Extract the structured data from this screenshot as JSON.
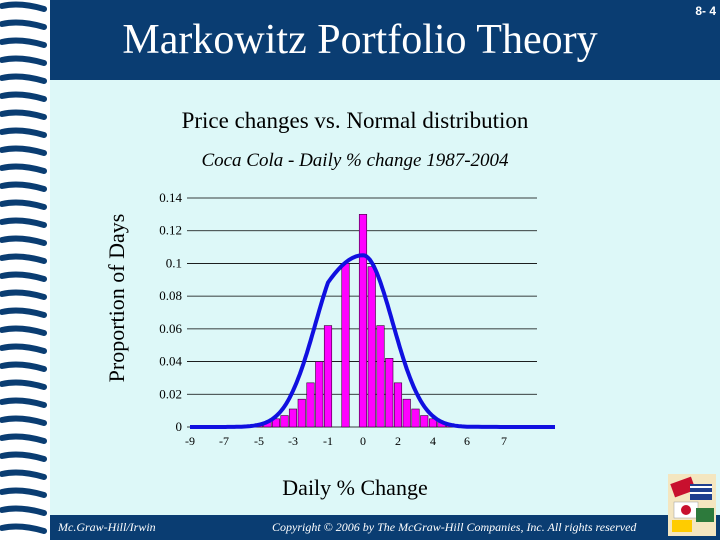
{
  "slide": {
    "title": "Markowitz Portfolio Theory",
    "number": "8- 4",
    "heading": "Price changes vs. Normal distribution",
    "footer_left": "Mc.Graw-Hill/Irwin",
    "footer_right": "Copyright © 2006 by The McGraw-Hill Companies, Inc. All rights reserved",
    "colors": {
      "band": "#0a3d72",
      "content_bg": "#ddf8f8",
      "bars": "#ff00ff",
      "curve": "#1010e0"
    }
  },
  "chart_data": {
    "type": "bar",
    "subtitle": "Coca Cola - Daily % change 1987-2004",
    "xlabel": "Daily % Change",
    "ylabel": "Proportion of Days",
    "ylim": [
      0,
      0.14
    ],
    "xlim": [
      -9,
      10
    ],
    "yticks": [
      "0",
      "0.02",
      "0.04",
      "0.06",
      "0.08",
      "0.1",
      "0.12",
      "0.14"
    ],
    "xticks": [
      "-9",
      "-7",
      "-5",
      "-3",
      "-1",
      "0",
      "2",
      "4",
      "6",
      "7"
    ],
    "grid": "horizontal",
    "series": [
      {
        "kind": "histogram",
        "bin_width": 0.5,
        "x": [
          -6.5,
          -6,
          -5.5,
          -5,
          -4.5,
          -4,
          -3.5,
          -3,
          -2.5,
          -2,
          -1.5,
          -1,
          -0.5,
          0,
          0.5,
          1,
          1.5,
          2,
          2.5,
          3,
          3.5,
          4,
          4.5,
          5,
          5.5,
          6,
          6.5
        ],
        "values": [
          0.0005,
          0.0005,
          0.001,
          0.002,
          0.003,
          0.005,
          0.007,
          0.011,
          0.017,
          0.027,
          0.04,
          0.062,
          0.1,
          0.13,
          0.098,
          0.062,
          0.042,
          0.027,
          0.017,
          0.011,
          0.007,
          0.005,
          0.003,
          0.002,
          0.001,
          0.0005,
          0.0005
        ]
      },
      {
        "kind": "normal-curve",
        "mean": 0,
        "peak": 0.105,
        "sd": 1.7
      }
    ]
  }
}
